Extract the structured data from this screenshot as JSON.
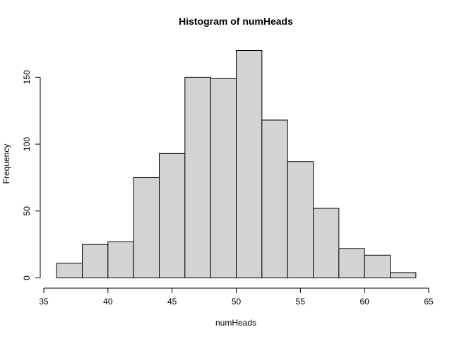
{
  "chart_data": {
    "type": "bar",
    "title": "Histogram of numHeads",
    "xlabel": "numHeads",
    "ylabel": "Frequency",
    "bins": [
      {
        "from": 36,
        "to": 38,
        "count": 11
      },
      {
        "from": 38,
        "to": 40,
        "count": 25
      },
      {
        "from": 40,
        "to": 42,
        "count": 27
      },
      {
        "from": 42,
        "to": 44,
        "count": 75
      },
      {
        "from": 44,
        "to": 46,
        "count": 93
      },
      {
        "from": 46,
        "to": 48,
        "count": 150
      },
      {
        "from": 48,
        "to": 50,
        "count": 149
      },
      {
        "from": 50,
        "to": 52,
        "count": 170
      },
      {
        "from": 52,
        "to": 54,
        "count": 118
      },
      {
        "from": 54,
        "to": 56,
        "count": 87
      },
      {
        "from": 56,
        "to": 58,
        "count": 52
      },
      {
        "from": 58,
        "to": 60,
        "count": 22
      },
      {
        "from": 60,
        "to": 62,
        "count": 17
      },
      {
        "from": 62,
        "to": 64,
        "count": 4
      }
    ],
    "xlim": [
      35,
      65
    ],
    "ylim": [
      0,
      170
    ],
    "xticks": [
      "35",
      "40",
      "45",
      "50",
      "55",
      "60",
      "65"
    ],
    "yticks": [
      "0",
      "50",
      "100",
      "150"
    ],
    "bar_color": "#d3d3d3",
    "grid": false,
    "legend": "none"
  }
}
